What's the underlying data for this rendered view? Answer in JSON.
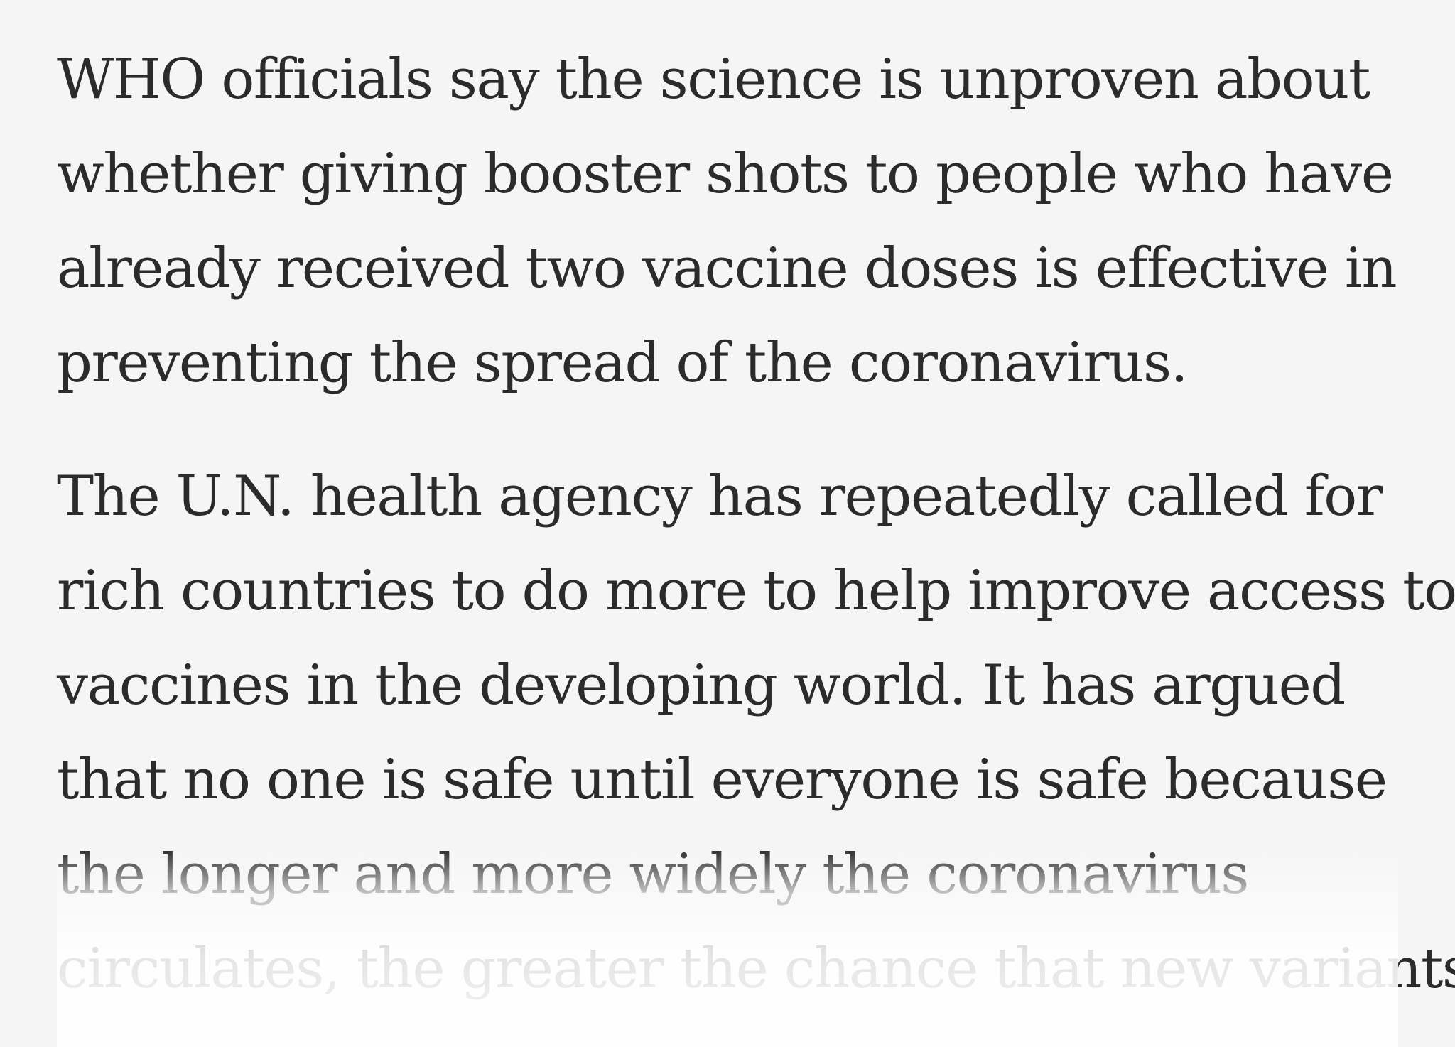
{
  "article": {
    "paragraphs": [
      {
        "lines": [
          "WHO officials say the science is unproven about",
          "whether giving booster shots to people who have",
          "already received two vaccine doses is effective in",
          "preventing the spread of the coronavirus."
        ]
      },
      {
        "lines": [
          "The U.N. health agency has repeatedly called for",
          "rich countries to do more to help improve access to",
          "vaccines in the developing world. It has argued",
          "that no one is safe until everyone is safe because",
          "the longer and more widely the coronavirus",
          "circulates, the greater the chance that new variants"
        ]
      }
    ]
  },
  "colors": {
    "background": "#f5f5f5",
    "text": "#2b2b2b"
  }
}
